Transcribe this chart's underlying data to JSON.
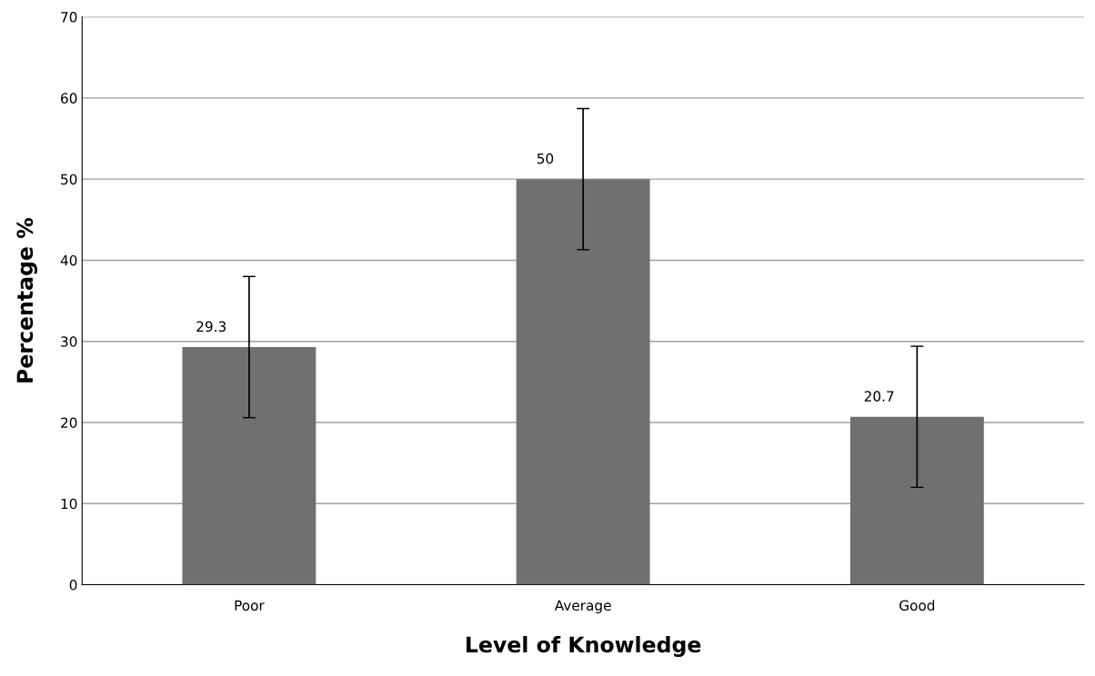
{
  "chart_data": {
    "type": "bar",
    "xlabel": "Level of Knowledge",
    "ylabel": "Percentage %",
    "categories": [
      "Poor",
      "Average",
      "Good"
    ],
    "values": [
      29.3,
      50,
      20.7
    ],
    "errors": [
      8.7,
      8.7,
      8.7
    ],
    "color": "#707070",
    "ylim": [
      0,
      70
    ],
    "yticks": [
      0,
      10,
      20,
      30,
      40,
      50,
      60,
      70
    ],
    "grid": "y",
    "data_labels": true
  }
}
